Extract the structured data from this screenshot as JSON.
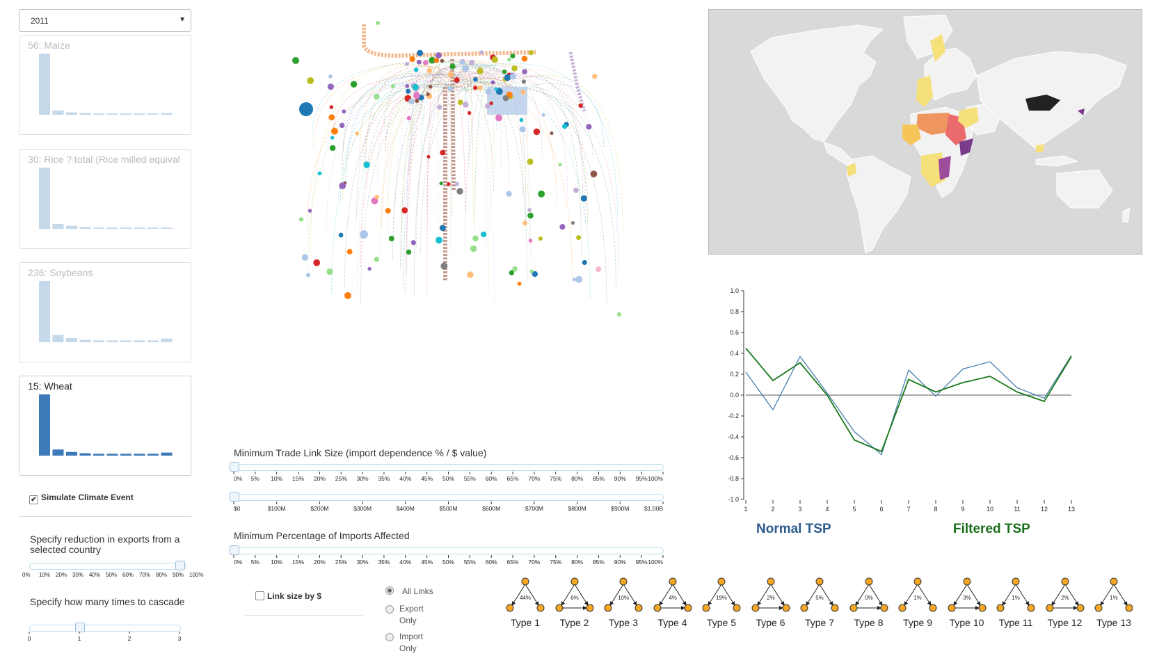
{
  "year_select": {
    "value": "2011"
  },
  "crops": [
    {
      "title": "56: Maize",
      "bars": [
        1.0,
        0.07,
        0.04,
        0.03,
        0.02,
        0.02,
        0.02,
        0.02,
        0.02,
        0.03
      ],
      "active": false
    },
    {
      "title": "30: Rice ? total (Rice milled equival",
      "bars": [
        1.0,
        0.08,
        0.05,
        0.03,
        0.02,
        0.02,
        0.02,
        0.02,
        0.02,
        0.02
      ],
      "active": false
    },
    {
      "title": "236: Soybeans",
      "bars": [
        1.0,
        0.12,
        0.07,
        0.04,
        0.03,
        0.03,
        0.03,
        0.03,
        0.03,
        0.06
      ],
      "active": false
    },
    {
      "title": "15: Wheat",
      "bars": [
        1.0,
        0.1,
        0.06,
        0.04,
        0.03,
        0.03,
        0.03,
        0.03,
        0.03,
        0.05
      ],
      "active": true
    }
  ],
  "simulate": {
    "label": "Simulate Climate Event",
    "checked": true
  },
  "reduction": {
    "label": "Specify reduction in exports from a selected country",
    "ticks": [
      "0%",
      "10%",
      "20%",
      "30%",
      "40%",
      "50%",
      "60%",
      "70%",
      "80%",
      "90%",
      "100%"
    ],
    "value_fraction": 1.0
  },
  "cascade": {
    "label": "Specify how many times to cascade",
    "ticks": [
      "0",
      "1",
      "2",
      "3"
    ],
    "value": 1
  },
  "trade_link": {
    "label": "Minimum Trade Link Size (import dependence % / $ value)",
    "pct_ticks": [
      "0%",
      "5%",
      "10%",
      "15%",
      "20%",
      "25%",
      "30%",
      "35%",
      "40%",
      "45%",
      "50%",
      "55%",
      "60%",
      "65%",
      "70%",
      "75%",
      "80%",
      "85%",
      "90%",
      "95%",
      "100%"
    ],
    "dollar_ticks": [
      "$0",
      "$100M",
      "$200M",
      "$300M",
      "$400M",
      "$500M",
      "$600M",
      "$700M",
      "$800M",
      "$900M",
      "$1.00B"
    ],
    "pct_value": 0,
    "dollar_value": 0
  },
  "imports_affected": {
    "label": "Minimum Percentage of Imports Affected",
    "ticks": [
      "0%",
      "5%",
      "10%",
      "15%",
      "20%",
      "25%",
      "30%",
      "35%",
      "40%",
      "45%",
      "50%",
      "55%",
      "60%",
      "65%",
      "70%",
      "75%",
      "80%",
      "85%",
      "90%",
      "95%",
      "100%"
    ],
    "value": 0
  },
  "link_size": {
    "label": "Link size by $",
    "checked": false
  },
  "link_filter": {
    "options": [
      "All Links",
      "Export Only",
      "Import Only"
    ],
    "selected": "All Links"
  },
  "chart_data": {
    "type": "line",
    "x": [
      1,
      2,
      3,
      4,
      5,
      6,
      7,
      8,
      9,
      10,
      11,
      12,
      13
    ],
    "series": [
      {
        "name": "Normal TSP",
        "color": "#4a7fb0",
        "values": [
          0.22,
          -0.14,
          0.37,
          0.02,
          -0.35,
          -0.57,
          0.24,
          -0.01,
          0.25,
          0.32,
          0.07,
          -0.03,
          0.38
        ]
      },
      {
        "name": "Filtered TSP",
        "color": "#1a7a1a",
        "values": [
          0.45,
          0.14,
          0.31,
          0.0,
          -0.43,
          -0.54,
          0.15,
          0.03,
          0.12,
          0.18,
          0.03,
          -0.06,
          0.37
        ]
      }
    ],
    "yticks": [
      "1.0",
      "0.8",
      "0.6",
      "0.4",
      "0.2",
      "0.0",
      "-0.2",
      "-0.4",
      "-0.6",
      "-0.8",
      "-1.0"
    ],
    "xticks": [
      "1",
      "2",
      "3",
      "4",
      "5",
      "6",
      "7",
      "8",
      "9",
      "10",
      "11",
      "12",
      "13"
    ],
    "ylim": [
      -1.0,
      1.0
    ],
    "legend": {
      "normal": "Normal TSP",
      "filtered": "Filtered TSP"
    }
  },
  "motifs": [
    {
      "label": "Type 1",
      "pct": "44%"
    },
    {
      "label": "Type 2",
      "pct": "6%"
    },
    {
      "label": "Type 3",
      "pct": "10%"
    },
    {
      "label": "Type 4",
      "pct": "4%"
    },
    {
      "label": "Type 5",
      "pct": "19%"
    },
    {
      "label": "Type 6",
      "pct": "2%"
    },
    {
      "label": "Type 7",
      "pct": "5%"
    },
    {
      "label": "Type 8",
      "pct": "0%"
    },
    {
      "label": "Type 9",
      "pct": "1%"
    },
    {
      "label": "Type 10",
      "pct": "3%"
    },
    {
      "label": "Type 11",
      "pct": "1%"
    },
    {
      "label": "Type 12",
      "pct": "2%"
    },
    {
      "label": "Type 13",
      "pct": "1%"
    }
  ],
  "colors": {
    "bar_inactive": "#c6d9ea",
    "bar_active": "#3d7ab8",
    "motif_node": "#f5a623"
  }
}
